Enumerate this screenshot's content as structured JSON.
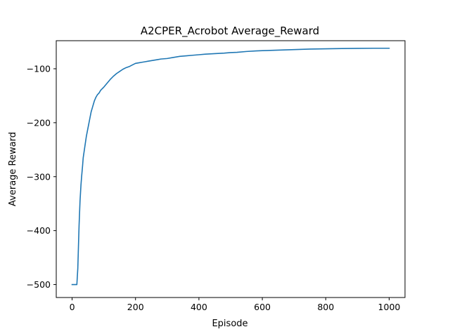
{
  "chart_data": {
    "type": "line",
    "title": "A2CPER_Acrobot Average_Reward",
    "xlabel": "Episode",
    "ylabel": "Average Reward",
    "xlim": [
      -50,
      1050
    ],
    "ylim": [
      -524,
      -48
    ],
    "xticks": [
      0,
      200,
      400,
      600,
      800,
      1000
    ],
    "xtick_labels": [
      "0",
      "200",
      "400",
      "600",
      "800",
      "1000"
    ],
    "yticks": [
      -500,
      -400,
      -300,
      -200,
      -100
    ],
    "ytick_labels": [
      "−500",
      "−400",
      "−300",
      "−200",
      "−100"
    ],
    "grid": false,
    "legend": "none",
    "series": [
      {
        "color": "#1f77b4",
        "x": [
          0,
          5,
          10,
          15,
          18,
          20,
          22,
          25,
          28,
          30,
          33,
          35,
          40,
          45,
          50,
          55,
          60,
          65,
          70,
          75,
          80,
          85,
          90,
          95,
          100,
          110,
          120,
          130,
          140,
          150,
          160,
          170,
          180,
          190,
          200,
          210,
          220,
          230,
          240,
          250,
          260,
          270,
          280,
          300,
          320,
          340,
          360,
          380,
          400,
          420,
          450,
          480,
          500,
          520,
          550,
          580,
          600,
          650,
          700,
          750,
          800,
          850,
          900,
          950,
          1000
        ],
        "y": [
          -500,
          -500,
          -500,
          -500,
          -470,
          -430,
          -390,
          -345,
          -315,
          -300,
          -280,
          -265,
          -245,
          -225,
          -210,
          -195,
          -180,
          -170,
          -160,
          -153,
          -148,
          -145,
          -140,
          -137,
          -134,
          -127,
          -120,
          -114,
          -109,
          -105,
          -101,
          -98,
          -96,
          -93,
          -90,
          -89,
          -88,
          -87,
          -86,
          -85,
          -84,
          -83,
          -82,
          -81,
          -79,
          -77,
          -76,
          -75,
          -74,
          -73,
          -72,
          -71,
          -70,
          -69.5,
          -68,
          -67,
          -66.5,
          -65.5,
          -64.5,
          -63.5,
          -63,
          -62.5,
          -62.2,
          -62,
          -62
        ]
      }
    ]
  }
}
